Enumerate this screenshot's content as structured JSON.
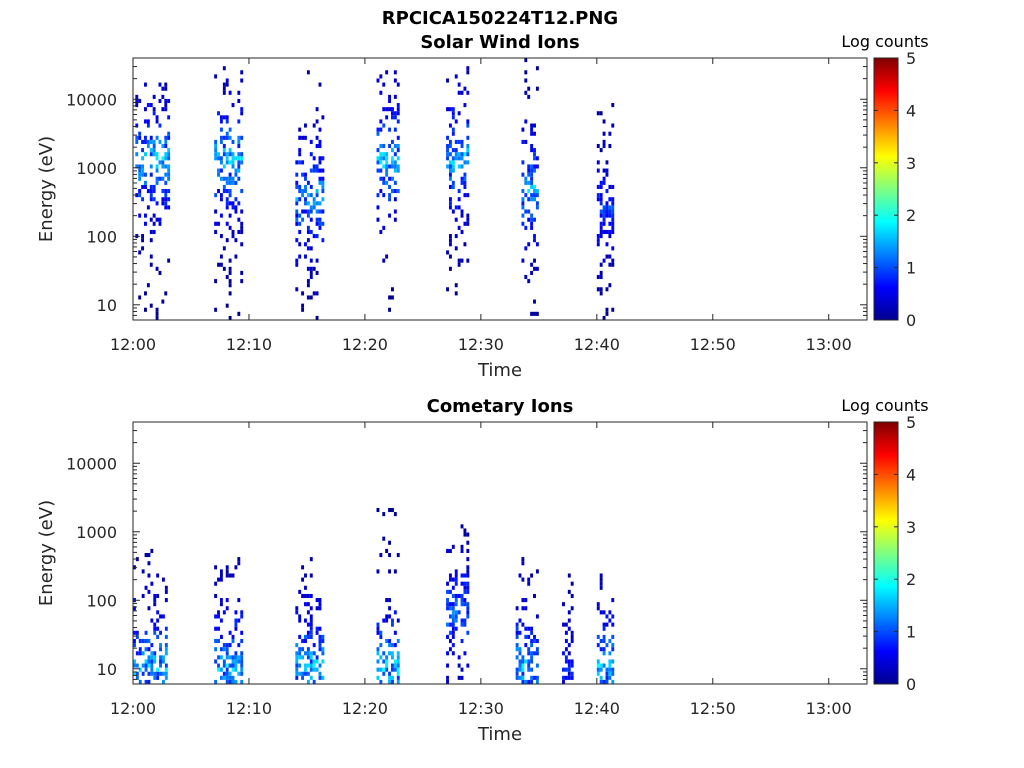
{
  "figure_title": "RPCICA150224T12.PNG",
  "chart_data": [
    {
      "type": "heatmap",
      "title": "Solar Wind Ions",
      "xlabel": "Time",
      "ylabel": "Energy (eV)",
      "x_tick_labels": [
        "12:00",
        "12:10",
        "12:20",
        "12:30",
        "12:40",
        "12:50",
        "13:00"
      ],
      "x_ticks_minutes": [
        0,
        10,
        20,
        30,
        40,
        50,
        60
      ],
      "xlim_minutes": [
        0,
        63.3
      ],
      "yscale": "log",
      "ylim": [
        6,
        40000
      ],
      "y_tick_labels": [
        "10",
        "100",
        "1000",
        "10000"
      ],
      "y_ticks": [
        10,
        100,
        1000,
        10000
      ],
      "colorbar": {
        "label": "Log counts",
        "ticks": [
          "0",
          "1",
          "2",
          "3",
          "4",
          "5"
        ],
        "range": [
          0,
          5
        ],
        "colormap": "jet"
      },
      "measurement_bursts": [
        {
          "t_min": 0.2,
          "t_max": 3.0,
          "e_min": 6,
          "e_max": 20000,
          "peak_energy_eV": 1200,
          "peak_log_counts": 2.0
        },
        {
          "t_min": 7.0,
          "t_max": 9.5,
          "e_min": 6,
          "e_max": 28000,
          "peak_energy_eV": 1200,
          "peak_log_counts": 2.0
        },
        {
          "t_min": 14.0,
          "t_max": 16.5,
          "e_min": 6,
          "e_max": 26000,
          "peak_energy_eV": 350,
          "peak_log_counts": 1.8
        },
        {
          "t_min": 21.0,
          "t_max": 23.0,
          "e_min": 6,
          "e_max": 25000,
          "peak_energy_eV": 1200,
          "peak_log_counts": 2.0
        },
        {
          "t_min": 27.0,
          "t_max": 29.0,
          "e_min": 6,
          "e_max": 30000,
          "peak_energy_eV": 1300,
          "peak_log_counts": 2.0
        },
        {
          "t_min": 33.5,
          "t_max": 35.0,
          "e_min": 6,
          "e_max": 35000,
          "peak_energy_eV": 450,
          "peak_log_counts": 1.9
        },
        {
          "t_min": 40.0,
          "t_max": 41.5,
          "e_min": 6,
          "e_max": 8000,
          "peak_energy_eV": 250,
          "peak_log_counts": 1.2
        }
      ]
    },
    {
      "type": "heatmap",
      "title": "Cometary Ions",
      "xlabel": "Time",
      "ylabel": "Energy (eV)",
      "x_tick_labels": [
        "12:00",
        "12:10",
        "12:20",
        "12:30",
        "12:40",
        "12:50",
        "13:00"
      ],
      "x_ticks_minutes": [
        0,
        10,
        20,
        30,
        40,
        50,
        60
      ],
      "xlim_minutes": [
        0,
        63.3
      ],
      "yscale": "log",
      "ylim": [
        6,
        40000
      ],
      "y_tick_labels": [
        "10",
        "100",
        "1000",
        "10000"
      ],
      "y_ticks": [
        10,
        100,
        1000,
        10000
      ],
      "colorbar": {
        "label": "Log counts",
        "ticks": [
          "0",
          "1",
          "2",
          "3",
          "4",
          "5"
        ],
        "range": [
          0,
          5
        ],
        "colormap": "jet"
      },
      "measurement_bursts": [
        {
          "t_min": 0.0,
          "t_max": 3.0,
          "e_min": 6,
          "e_max": 500,
          "peak_energy_eV": 10,
          "peak_log_counts": 2.0
        },
        {
          "t_min": 7.0,
          "t_max": 9.5,
          "e_min": 6,
          "e_max": 400,
          "peak_energy_eV": 10,
          "peak_log_counts": 2.0
        },
        {
          "t_min": 14.0,
          "t_max": 16.5,
          "e_min": 6,
          "e_max": 400,
          "peak_energy_eV": 10,
          "peak_log_counts": 2.0
        },
        {
          "t_min": 21.0,
          "t_max": 23.0,
          "e_min": 6,
          "e_max": 2500,
          "peak_energy_eV": 10,
          "peak_log_counts": 2.1
        },
        {
          "t_min": 27.0,
          "t_max": 29.0,
          "e_min": 6,
          "e_max": 1200,
          "peak_energy_eV": 60,
          "peak_log_counts": 1.5
        },
        {
          "t_min": 33.0,
          "t_max": 35.0,
          "e_min": 6,
          "e_max": 600,
          "peak_energy_eV": 10,
          "peak_log_counts": 2.0
        },
        {
          "t_min": 37.0,
          "t_max": 38.0,
          "e_min": 6,
          "e_max": 300,
          "peak_energy_eV": 10,
          "peak_log_counts": 1.0
        },
        {
          "t_min": 40.0,
          "t_max": 41.5,
          "e_min": 6,
          "e_max": 500,
          "peak_energy_eV": 10,
          "peak_log_counts": 2.0
        }
      ]
    }
  ]
}
